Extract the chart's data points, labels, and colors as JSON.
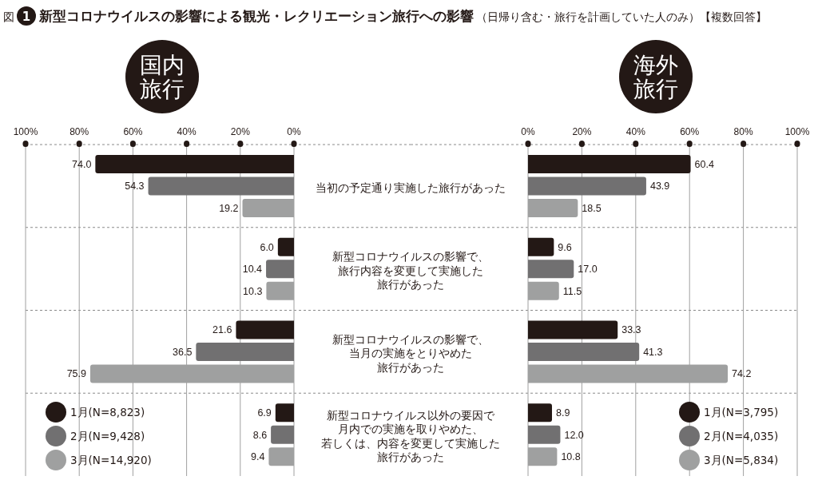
{
  "chart_data": [
    {
      "type": "bar",
      "orientation": "horizontal",
      "title": "国内旅行",
      "annotations": [
        "図",
        "1",
        "新型コロナウイルスの影響による観光・レクリエーション旅行への影響",
        "（日帰り含む・旅行を計画していた人のみ）【複数回答】"
      ],
      "categories": [
        "当初の予定通り実施した旅行があった",
        "新型コロナウイルスの影響で、旅行内容を変更して実施した旅行があった",
        "新型コロナウイルスの影響で、当月の実施をとりやめた旅行があった",
        "新型コロナウイルス以外の要因で月内での実施を取りやめた、若しくは、内容を変更して実施した旅行があった"
      ],
      "series": [
        {
          "name": "1月(N=8,823)",
          "color": "#231815",
          "values": [
            74.0,
            6.0,
            21.6,
            6.9
          ],
          "value_labels": [
            "74.0",
            "6.0",
            "21.6",
            "6.9"
          ]
        },
        {
          "name": "2月(N=9,428)",
          "color": "#717071",
          "values": [
            54.3,
            10.4,
            36.5,
            8.6
          ],
          "value_labels": [
            "54.3",
            "10.4",
            "36.5",
            "8.6"
          ]
        },
        {
          "name": "3月(N=14,920)",
          "color": "#9fa0a0",
          "values": [
            19.2,
            10.3,
            75.9,
            9.4
          ],
          "value_labels": [
            "19.2",
            "10.3",
            "75.9",
            "9.4"
          ]
        }
      ],
      "xlim": [
        100,
        0
      ],
      "xticks": [
        {
          "value": 100,
          "label": "100%"
        },
        {
          "value": 80,
          "label": "80%"
        },
        {
          "value": 60,
          "label": "60%"
        },
        {
          "value": 40,
          "label": "40%"
        },
        {
          "value": 20,
          "label": "20%"
        },
        {
          "value": 0,
          "label": "0%"
        }
      ],
      "grid": true,
      "legend": "bottom left"
    },
    {
      "type": "bar",
      "orientation": "horizontal",
      "title": "海外旅行",
      "categories": [
        null,
        null,
        null,
        null
      ],
      "series": [
        {
          "name": "1月(N=3,795)",
          "color": "#231815",
          "values": [
            60.4,
            9.6,
            33.3,
            8.9
          ],
          "value_labels": [
            "60.4",
            "9.6",
            "33.3",
            "8.9"
          ]
        },
        {
          "name": "2月(N=4,035)",
          "color": "#717071",
          "values": [
            43.9,
            17.0,
            41.3,
            12.0
          ],
          "value_labels": [
            "43.9",
            "17.0",
            "41.3",
            "12.0"
          ]
        },
        {
          "name": "3月(N=5,834)",
          "color": "#9fa0a0",
          "values": [
            18.5,
            11.5,
            74.2,
            10.8
          ],
          "value_labels": [
            "18.5",
            "11.5",
            "74.2",
            "10.8"
          ]
        }
      ],
      "xlim": [
        0,
        100
      ],
      "xticks": [
        {
          "value": 0,
          "label": "0%"
        },
        {
          "value": 20,
          "label": "20%"
        },
        {
          "value": 40,
          "label": "40%"
        },
        {
          "value": 60,
          "label": "60%"
        },
        {
          "value": 80,
          "label": "80%"
        },
        {
          "value": 100,
          "label": "100%"
        }
      ],
      "grid": true,
      "legend": "bottom right"
    }
  ]
}
